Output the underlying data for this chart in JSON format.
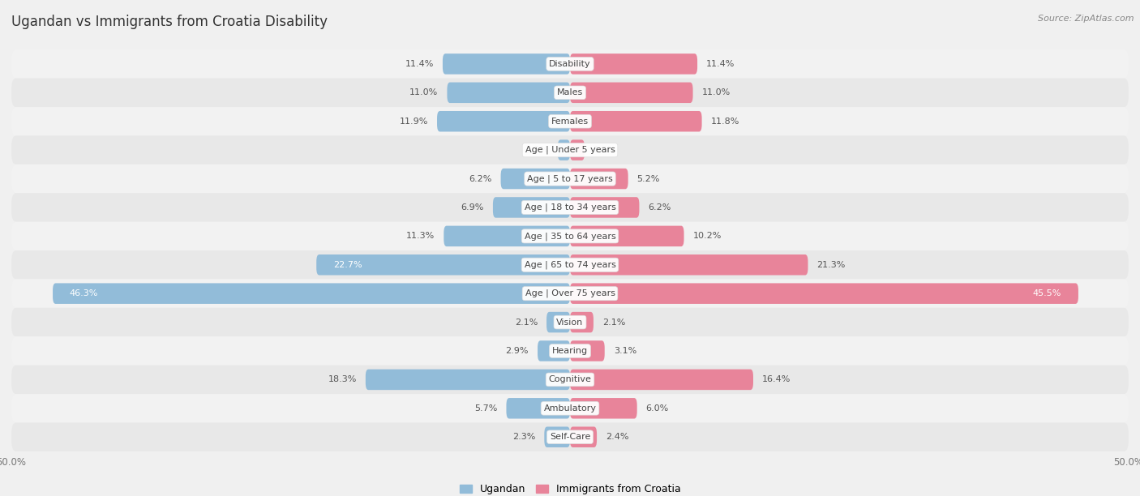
{
  "title": "Ugandan vs Immigrants from Croatia Disability",
  "source": "Source: ZipAtlas.com",
  "categories": [
    "Disability",
    "Males",
    "Females",
    "Age | Under 5 years",
    "Age | 5 to 17 years",
    "Age | 18 to 34 years",
    "Age | 35 to 64 years",
    "Age | 65 to 74 years",
    "Age | Over 75 years",
    "Vision",
    "Hearing",
    "Cognitive",
    "Ambulatory",
    "Self-Care"
  ],
  "ugandan": [
    11.4,
    11.0,
    11.9,
    1.1,
    6.2,
    6.9,
    11.3,
    22.7,
    46.3,
    2.1,
    2.9,
    18.3,
    5.7,
    2.3
  ],
  "croatia": [
    11.4,
    11.0,
    11.8,
    1.3,
    5.2,
    6.2,
    10.2,
    21.3,
    45.5,
    2.1,
    3.1,
    16.4,
    6.0,
    2.4
  ],
  "ugandan_color": "#92bcd9",
  "croatia_color": "#e8849a",
  "max_val": 50.0,
  "row_bg_colors": [
    "#f2f2f2",
    "#e8e8e8"
  ],
  "bar_height": 0.72,
  "title_fontsize": 12,
  "label_fontsize": 8,
  "category_fontsize": 8,
  "axis_fontsize": 8.5,
  "fig_bg": "#f0f0f0"
}
